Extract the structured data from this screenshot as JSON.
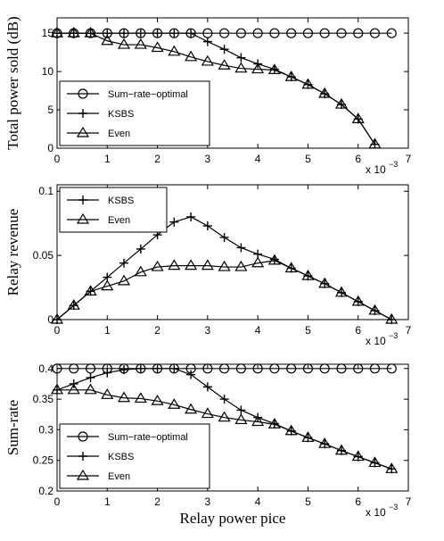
{
  "chart_data": [
    {
      "type": "line",
      "ylabel": "Total power sold (dB)",
      "x_multiplier": "x 10",
      "x_exponent": "−3",
      "xlim": [
        0,
        7
      ],
      "xticks": [
        0,
        1,
        2,
        3,
        4,
        5,
        6,
        7
      ],
      "ylim": [
        0,
        17
      ],
      "yticks": [
        0,
        5,
        10,
        15
      ],
      "legend": "lower left",
      "color": "#000000",
      "series": [
        {
          "name": "Sum−rate−optimal",
          "marker": "circle",
          "x": [
            0,
            0.333,
            0.667,
            1,
            1.333,
            1.667,
            2,
            2.333,
            2.667,
            3,
            3.333,
            3.667,
            4,
            4.333,
            4.667,
            5,
            5.333,
            5.667,
            6,
            6.333,
            6.667
          ],
          "values": [
            15,
            15,
            15,
            15,
            15,
            15,
            15,
            15,
            15,
            15,
            15,
            15,
            15,
            15,
            15,
            15,
            15,
            15,
            15,
            15,
            15
          ]
        },
        {
          "name": "KSBS",
          "marker": "plus",
          "x": [
            0,
            0.333,
            0.667,
            1,
            1.333,
            1.667,
            2,
            2.333,
            2.667,
            3,
            3.333,
            3.667,
            4,
            4.333,
            4.667,
            5,
            5.333,
            5.667,
            6,
            6.333
          ],
          "values": [
            15,
            15,
            15,
            15,
            15,
            15,
            15,
            15,
            15,
            13.9,
            12.9,
            11.8,
            11,
            10.3,
            9.3,
            8.3,
            7.1,
            5.7,
            3.8,
            0.5
          ]
        },
        {
          "name": "Even",
          "marker": "triangle",
          "x": [
            0,
            0.333,
            0.667,
            1,
            1.333,
            1.667,
            2,
            2.333,
            2.667,
            3,
            3.333,
            3.667,
            4,
            4.333,
            4.667,
            5,
            5.333,
            5.667,
            6,
            6.333
          ],
          "values": [
            15,
            15,
            15,
            14,
            13.5,
            13.5,
            13.1,
            12.6,
            11.9,
            11.3,
            10.8,
            10.4,
            10.3,
            10.2,
            9.3,
            8.3,
            7.1,
            5.7,
            3.8,
            0.5
          ]
        }
      ]
    },
    {
      "type": "line",
      "ylabel": "Relay revenue",
      "x_multiplier": "x 10",
      "x_exponent": "−3",
      "xlim": [
        0,
        7
      ],
      "xticks": [
        0,
        1,
        2,
        3,
        4,
        5,
        6,
        7
      ],
      "ylim": [
        0,
        0.105
      ],
      "yticks": [
        0,
        0.05,
        0.1
      ],
      "legend": "upper left",
      "color": "#000000",
      "series": [
        {
          "name": "KSBS",
          "marker": "plus",
          "x": [
            0,
            0.333,
            0.667,
            1,
            1.333,
            1.667,
            2,
            2.333,
            2.667,
            3,
            3.333,
            3.667,
            4,
            4.333,
            4.667,
            5,
            5.333,
            5.667,
            6,
            6.333,
            6.667
          ],
          "values": [
            0,
            0.011,
            0.022,
            0.033,
            0.044,
            0.055,
            0.066,
            0.076,
            0.08,
            0.073,
            0.064,
            0.056,
            0.051,
            0.047,
            0.04,
            0.034,
            0.028,
            0.021,
            0.014,
            0.007,
            0
          ]
        },
        {
          "name": "Even",
          "marker": "triangle",
          "x": [
            0,
            0.333,
            0.667,
            1,
            1.333,
            1.667,
            2,
            2.333,
            2.667,
            3,
            3.333,
            3.667,
            4,
            4.333,
            4.667,
            5,
            5.333,
            5.667,
            6,
            6.333,
            6.667
          ],
          "values": [
            0,
            0.011,
            0.022,
            0.026,
            0.03,
            0.037,
            0.041,
            0.042,
            0.042,
            0.042,
            0.041,
            0.041,
            0.044,
            0.046,
            0.04,
            0.034,
            0.028,
            0.021,
            0.014,
            0.007,
            0
          ]
        }
      ]
    },
    {
      "type": "line",
      "ylabel": "Sum-rate",
      "xlabel": "Relay power pice",
      "x_multiplier": "x 10",
      "x_exponent": "−3",
      "xlim": [
        0,
        7
      ],
      "xticks": [
        0,
        1,
        2,
        3,
        4,
        5,
        6,
        7
      ],
      "ylim": [
        0.2,
        0.407
      ],
      "yticks": [
        0.2,
        0.25,
        0.3,
        0.35,
        0.4
      ],
      "legend": "lower left",
      "color": "#000000",
      "series": [
        {
          "name": "Sum−rate−optimal",
          "marker": "circle",
          "x": [
            0,
            0.333,
            0.667,
            1,
            1.333,
            1.667,
            2,
            2.333,
            2.667,
            3,
            3.333,
            3.667,
            4,
            4.333,
            4.667,
            5,
            5.333,
            5.667,
            6,
            6.333,
            6.667
          ],
          "values": [
            0.4,
            0.4,
            0.4,
            0.4,
            0.4,
            0.4,
            0.4,
            0.4,
            0.4,
            0.4,
            0.4,
            0.4,
            0.4,
            0.4,
            0.4,
            0.4,
            0.4,
            0.4,
            0.4,
            0.4,
            0.4
          ]
        },
        {
          "name": "KSBS",
          "marker": "plus",
          "x": [
            0,
            0.333,
            0.667,
            1,
            1.333,
            1.667,
            2,
            2.333,
            2.667,
            3,
            3.333,
            3.667,
            4,
            4.333,
            4.667,
            5,
            5.333,
            5.667,
            6,
            6.333,
            6.667
          ],
          "values": [
            0.365,
            0.375,
            0.385,
            0.393,
            0.398,
            0.4,
            0.4,
            0.4,
            0.39,
            0.37,
            0.35,
            0.332,
            0.32,
            0.31,
            0.298,
            0.287,
            0.277,
            0.266,
            0.256,
            0.246,
            0.236
          ]
        },
        {
          "name": "Even",
          "marker": "triangle",
          "x": [
            0,
            0.333,
            0.667,
            1,
            1.333,
            1.667,
            2,
            2.333,
            2.667,
            3,
            3.333,
            3.667,
            4,
            4.333,
            4.667,
            5,
            5.333,
            5.667,
            6,
            6.333,
            6.667
          ],
          "values": [
            0.365,
            0.365,
            0.365,
            0.357,
            0.352,
            0.351,
            0.347,
            0.341,
            0.333,
            0.326,
            0.32,
            0.316,
            0.313,
            0.309,
            0.298,
            0.287,
            0.277,
            0.266,
            0.256,
            0.246,
            0.236
          ]
        }
      ]
    }
  ]
}
